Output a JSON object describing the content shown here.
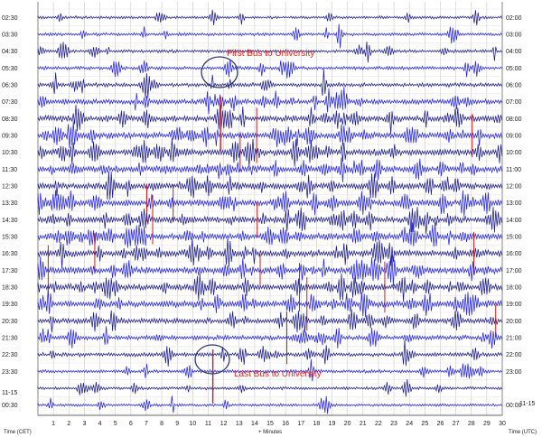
{
  "chart_data": {
    "type": "line",
    "title": "",
    "xlabel": "+ Minutes",
    "ylabel_left": "Time (CET)",
    "ylabel_right": "Time (UTC)",
    "xlim": [
      0,
      30
    ],
    "x_ticks": [
      "1",
      "2",
      "3",
      "4",
      "5",
      "6",
      "7",
      "8",
      "9",
      "10",
      "11",
      "12",
      "13",
      "14",
      "15",
      "16",
      "17",
      "18",
      "19",
      "20",
      "21",
      "22",
      "23",
      "24",
      "25",
      "26",
      "27",
      "28",
      "29",
      "30"
    ],
    "rows": 24,
    "row_labels_left": [
      "02:30",
      "03:30",
      "04:30",
      "05:30",
      "06:30",
      "07:30",
      "08:30",
      "09:30",
      "10:30",
      "11:30",
      "12:30",
      "13:30",
      "14:30",
      "15:30",
      "16:30",
      "17:30",
      "18:30",
      "19:30",
      "20:30",
      "21:30",
      "22:30",
      "23:30",
      "00:30"
    ],
    "row_labels_right": [
      "02:00",
      "03:00",
      "04:00",
      "05:00",
      "06:00",
      "07:00",
      "08:00",
      "09:00",
      "10:00",
      "11:00",
      "12:00",
      "13:00",
      "14:00",
      "15:00",
      "16:00",
      "17:00",
      "18:00",
      "19:00",
      "20:00",
      "21:00",
      "22:00",
      "23:00",
      "00:00"
    ],
    "date_label_left": "11-15",
    "date_label_right": "11-15",
    "trace_colors": [
      "#1a1a8c",
      "#2323e6"
    ],
    "event_color": "#cc1a1a",
    "grid": true,
    "annotations": [
      {
        "text": "First Bus to University",
        "minute": 11.8,
        "row": 6.3
      },
      {
        "text": "Last Bus to University",
        "minute": 11.3,
        "row": 21.3
      }
    ]
  }
}
